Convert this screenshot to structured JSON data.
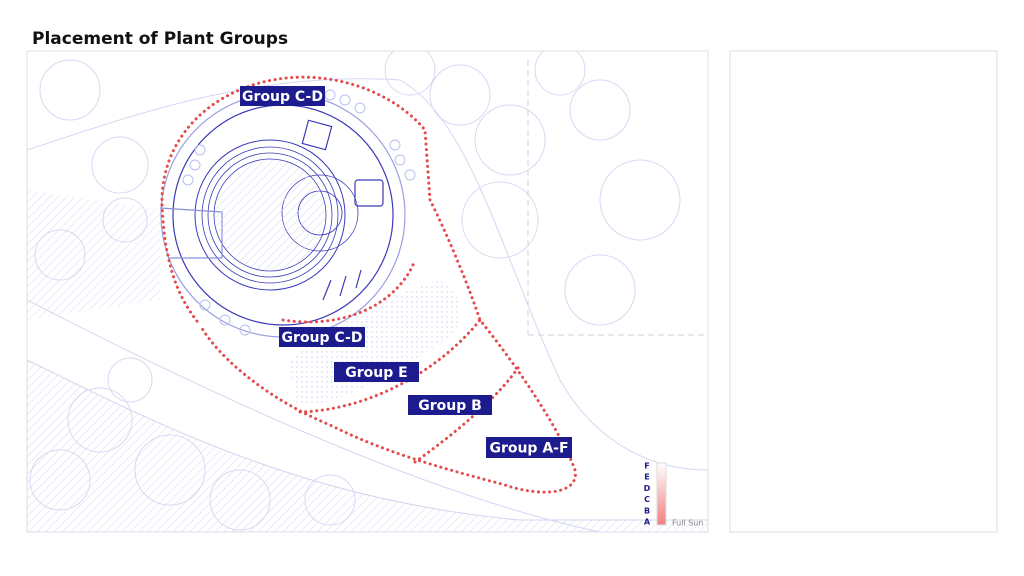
{
  "title": "Placement of Plant Groups",
  "labels": [
    "Group C-D",
    "Group C-D",
    "Group E",
    "Group B",
    "Group A-F"
  ],
  "legend": {
    "letters": [
      "F",
      "E",
      "D",
      "C",
      "B",
      "A"
    ],
    "caption": "Full Sun"
  }
}
